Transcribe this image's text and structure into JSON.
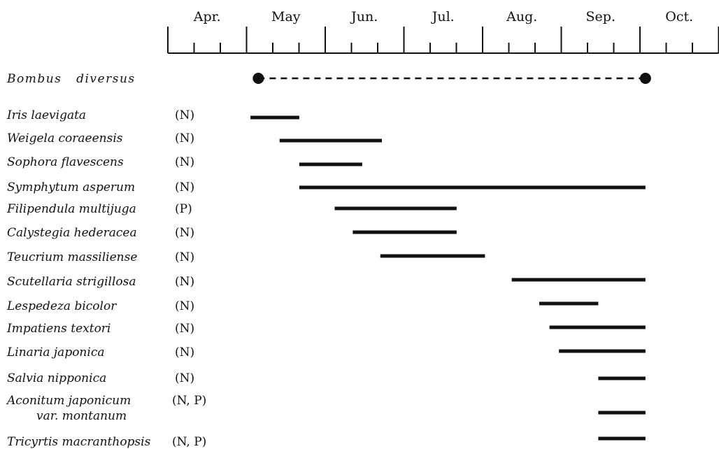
{
  "chart_data": {
    "type": "gantt",
    "months": [
      "Apr.",
      "May",
      "Jun.",
      "Jul.",
      "Aug.",
      "Sep.",
      "Oct."
    ],
    "bee": {
      "name": "Bombus   diversus",
      "start": 5.15,
      "end": 10.07
    },
    "plants": [
      {
        "name": "Iris laevigata",
        "resource": "(N)",
        "start": 5.05,
        "end": 5.67
      },
      {
        "name": "Weigela coraeensis",
        "resource": "(N)",
        "start": 5.42,
        "end": 6.72
      },
      {
        "name": "Sophora flavescens",
        "resource": "(N)",
        "start": 5.67,
        "end": 6.47
      },
      {
        "name": "Symphytum asperum",
        "resource": "(N)",
        "start": 5.67,
        "end": 10.07
      },
      {
        "name": "Filipendula multijuga",
        "resource": "(P)",
        "start": 6.12,
        "end": 7.67
      },
      {
        "name": "Calystegia hederacea",
        "resource": "(N)",
        "start": 6.35,
        "end": 7.67
      },
      {
        "name": "Teucrium massiliense",
        "resource": "(N)",
        "start": 6.7,
        "end": 8.03
      },
      {
        "name": "Scutellaria strigillosa",
        "resource": "(N)",
        "start": 8.37,
        "end": 10.07
      },
      {
        "name": "Lespedeza bicolor",
        "resource": "(N)",
        "start": 8.72,
        "end": 9.47
      },
      {
        "name": "Impatiens textori",
        "resource": "(N)",
        "start": 8.85,
        "end": 10.07
      },
      {
        "name": "Linaria japonica",
        "resource": "(N)",
        "start": 8.97,
        "end": 10.07
      },
      {
        "name": "Salvia nipponica",
        "resource": "(N)",
        "start": 9.47,
        "end": 10.07
      },
      {
        "name": "Aconitum japonicum",
        "name_line2": "var. montanum",
        "resource": "(N, P)",
        "start": 9.47,
        "end": 10.07
      },
      {
        "name": "Tricyrtis macranthopsis",
        "resource": "(N, P)",
        "start": 9.47,
        "end": 10.07
      }
    ]
  }
}
